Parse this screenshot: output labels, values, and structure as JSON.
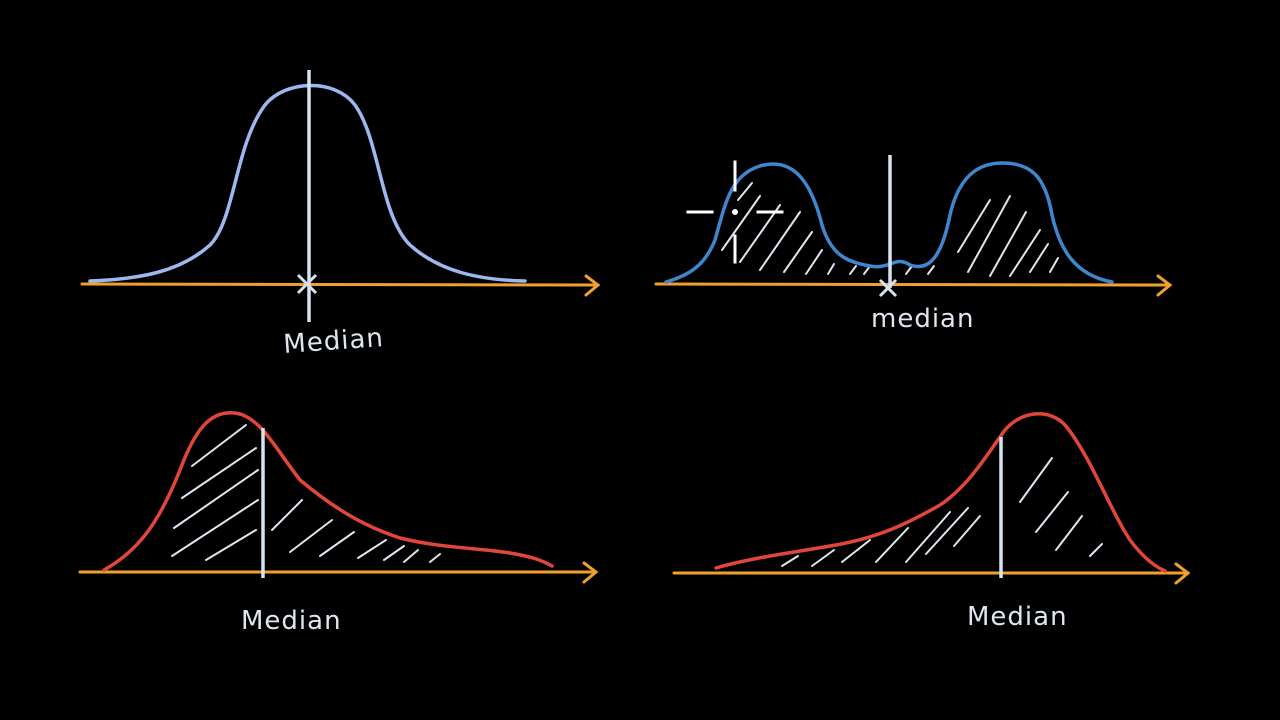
{
  "colors": {
    "background": "#000000",
    "axis": "#f0a030",
    "normal_curve": "#9db8ee",
    "bimodal_curve": "#3f86cf",
    "skewed_curve": "#e2463a",
    "median_line": "#d6e2ef",
    "hatch": "#dfe6f0",
    "cursor": "#ffffff"
  },
  "panels": [
    {
      "shape": "symmetric-normal",
      "label": "Median"
    },
    {
      "shape": "bimodal",
      "label": "median"
    },
    {
      "shape": "right-skewed",
      "label": "Median"
    },
    {
      "shape": "left-skewed",
      "label": "Median"
    }
  ]
}
